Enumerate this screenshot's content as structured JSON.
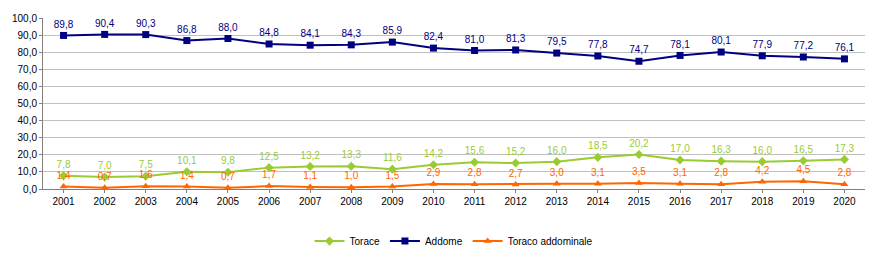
{
  "chart_data": {
    "type": "line",
    "categories": [
      "2001",
      "2002",
      "2003",
      "2004",
      "2005",
      "2006",
      "2007",
      "2008",
      "2009",
      "2010",
      "2011",
      "2012",
      "2013",
      "2014",
      "2015",
      "2016",
      "2017",
      "2018",
      "2019",
      "2020"
    ],
    "series": [
      {
        "name": "Torace",
        "color": "#99cc33",
        "marker": "diamond",
        "line_style": "solid",
        "values": [
          7.8,
          7.0,
          7.5,
          10.1,
          9.8,
          12.5,
          13.2,
          13.3,
          11.6,
          14.2,
          15.6,
          15.2,
          16.0,
          18.5,
          20.2,
          17.0,
          16.3,
          16.0,
          16.5,
          17.3
        ],
        "value_labels": [
          "7,8",
          "7,0",
          "7,5",
          "10,1",
          "9,8",
          "12,5",
          "13,2",
          "13,3",
          "11,6",
          "14,2",
          "15,6",
          "15,2",
          "16,0",
          "18,5",
          "20,2",
          "17,0",
          "16,3",
          "16,0",
          "16,5",
          "17,3"
        ]
      },
      {
        "name": "Addome",
        "color": "#000080",
        "marker": "square",
        "line_style": "solid",
        "values": [
          89.8,
          90.4,
          90.3,
          86.8,
          88.0,
          84.8,
          84.1,
          84.3,
          85.9,
          82.4,
          81.0,
          81.3,
          79.5,
          77.8,
          74.7,
          78.1,
          80.1,
          77.9,
          77.2,
          76.1
        ],
        "value_labels": [
          "89,8",
          "90,4",
          "90,3",
          "86,8",
          "88,0",
          "84,8",
          "84,1",
          "84,3",
          "85,9",
          "82,4",
          "81,0",
          "81,3",
          "79,5",
          "77,8",
          "74,7",
          "78,1",
          "80,1",
          "77,9",
          "77,2",
          "76,1"
        ]
      },
      {
        "name": "Toraco addominale",
        "color": "#ff6600",
        "marker": "triangle-up",
        "line_style": "solid",
        "values": [
          1.4,
          0.7,
          1.6,
          1.4,
          0.7,
          1.7,
          1.1,
          1.0,
          1.5,
          2.9,
          2.8,
          2.7,
          3.0,
          3.1,
          3.5,
          3.1,
          2.8,
          4.2,
          4.5,
          2.8
        ],
        "value_labels": [
          "1,4",
          "0,7",
          "1,6",
          "1,4",
          "0,7",
          "1,7",
          "1,1",
          "1,0",
          "1,5",
          "2,9",
          "2,8",
          "2,7",
          "3,0",
          "3,1",
          "3,5",
          "3,1",
          "2,8",
          "4,2",
          "4,5",
          "2,8"
        ]
      }
    ],
    "ylim": [
      0,
      100
    ],
    "yticks": [
      {
        "value": 0,
        "label": "0,0"
      },
      {
        "value": 10,
        "label": "10,0"
      },
      {
        "value": 20,
        "label": "20,0"
      },
      {
        "value": 30,
        "label": "30,0"
      },
      {
        "value": 40,
        "label": "40,0"
      },
      {
        "value": 50,
        "label": "50,0"
      },
      {
        "value": 60,
        "label": "60,0"
      },
      {
        "value": 70,
        "label": "70,0"
      },
      {
        "value": 80,
        "label": "80,0"
      },
      {
        "value": 90,
        "label": "90,0"
      },
      {
        "value": 100,
        "label": "100,0"
      }
    ],
    "grid": true,
    "legend": "bottom",
    "data_labels": true
  }
}
